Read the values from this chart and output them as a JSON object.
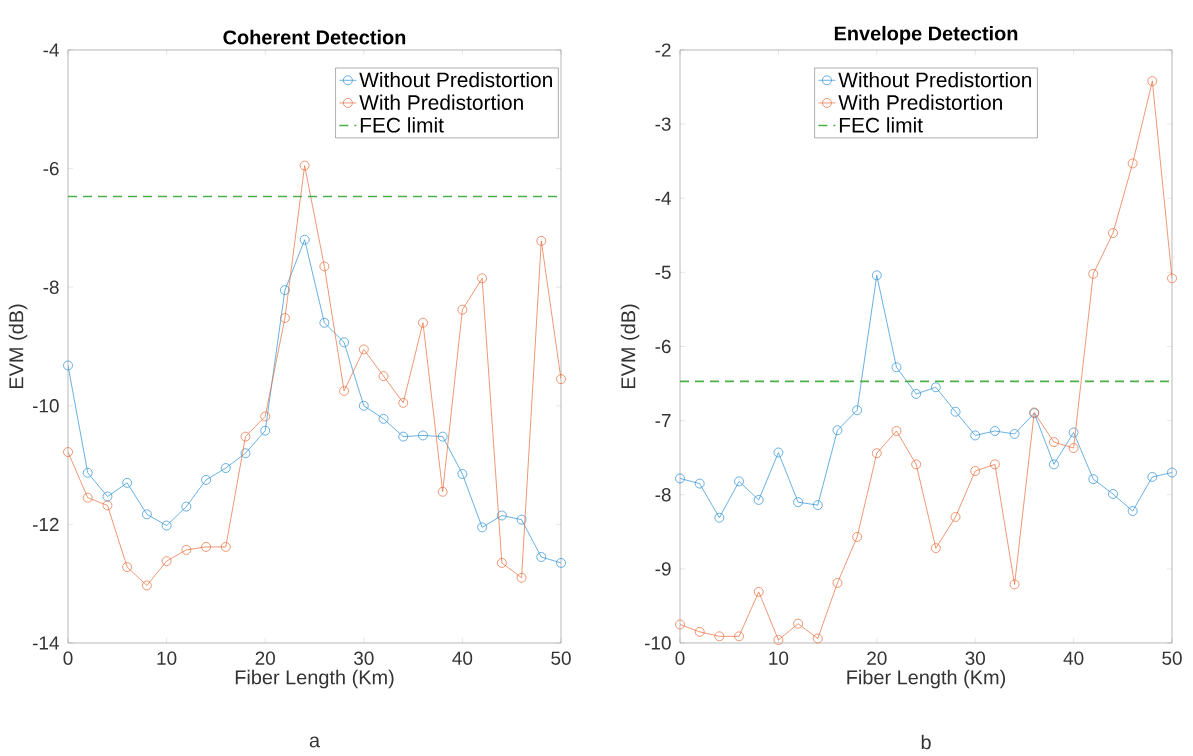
{
  "chart_data": [
    {
      "type": "line",
      "title": "Coherent Detection",
      "xlabel": "Fiber Length (Km)",
      "ylabel": "EVM (dB)",
      "annotations": [
        "a"
      ],
      "marker": "circle",
      "legend": "top right",
      "line_style": "solid",
      "x": [
        0,
        2,
        4,
        6,
        8,
        10,
        12,
        14,
        16,
        18,
        20,
        22,
        24,
        26,
        28,
        30,
        32,
        34,
        36,
        38,
        40,
        42,
        44,
        46,
        48,
        50
      ],
      "series": [
        {
          "name": "Without Predistortion",
          "color": "#2a8fd5",
          "values": [
            -9.32,
            -11.13,
            -11.53,
            -11.3,
            -11.83,
            -12.02,
            -11.7,
            -11.25,
            -11.05,
            -10.8,
            -10.42,
            -8.05,
            -7.2,
            -8.6,
            -8.93,
            -10.0,
            -10.22,
            -10.52,
            -10.5,
            -10.52,
            -11.15,
            -12.05,
            -11.85,
            -11.92,
            -12.55,
            -12.65
          ]
        },
        {
          "name": "With Predistortion",
          "color": "#e66b3a",
          "values": [
            -10.78,
            -11.55,
            -11.68,
            -12.72,
            -13.03,
            -12.62,
            -12.43,
            -12.38,
            -12.38,
            -10.52,
            -10.18,
            -8.52,
            -5.95,
            -7.65,
            -9.75,
            -9.05,
            -9.5,
            -9.95,
            -8.6,
            -11.45,
            -8.38,
            -7.85,
            -12.65,
            -12.9,
            -7.22,
            -9.55
          ]
        }
      ],
      "ref_lines": [
        {
          "axis": "y",
          "value": -6.47,
          "label": "FEC limit",
          "color": "#4daf4a",
          "line_style": "dashed"
        }
      ],
      "xlim": [
        0,
        50
      ],
      "ylim": [
        -14,
        -4
      ],
      "xticks": [
        0,
        10,
        20,
        30,
        40,
        50
      ],
      "yticks": [
        -14,
        -12,
        -10,
        -8,
        -6,
        -4
      ]
    },
    {
      "type": "line",
      "title": "Envelope Detection",
      "xlabel": "Fiber Length (Km)",
      "ylabel": "EVM (dB)",
      "annotations": [
        "b"
      ],
      "marker": "circle",
      "legend": "top",
      "line_style": "solid",
      "x": [
        0,
        2,
        4,
        6,
        8,
        10,
        12,
        14,
        16,
        18,
        20,
        22,
        24,
        26,
        28,
        30,
        32,
        34,
        36,
        38,
        40,
        42,
        44,
        46,
        48,
        50
      ],
      "series": [
        {
          "name": "Without Predistortion",
          "color": "#2a8fd5",
          "values": [
            -7.78,
            -7.85,
            -8.31,
            -7.82,
            -8.07,
            -7.43,
            -8.1,
            -8.14,
            -7.13,
            -6.86,
            -5.04,
            -6.28,
            -6.64,
            -6.55,
            -6.88,
            -7.2,
            -7.14,
            -7.18,
            -6.9,
            -7.59,
            -7.16,
            -7.79,
            -7.99,
            -8.22,
            -7.76,
            -7.7
          ]
        },
        {
          "name": "With Predistortion",
          "color": "#e66b3a",
          "values": [
            -9.75,
            -9.85,
            -9.91,
            -9.91,
            -9.31,
            -9.96,
            -9.74,
            -9.94,
            -9.19,
            -8.57,
            -7.44,
            -7.14,
            -7.59,
            -8.72,
            -8.3,
            -7.68,
            -7.59,
            -9.21,
            -6.89,
            -7.29,
            -7.37,
            -5.02,
            -4.47,
            -3.53,
            -2.42,
            -5.08
          ]
        }
      ],
      "ref_lines": [
        {
          "axis": "y",
          "value": -6.47,
          "label": "FEC limit",
          "color": "#4daf4a",
          "line_style": "dashed"
        }
      ],
      "xlim": [
        0,
        50
      ],
      "ylim": [
        -10,
        -2
      ],
      "xticks": [
        0,
        10,
        20,
        30,
        40,
        50
      ],
      "yticks": [
        -10,
        -9,
        -8,
        -7,
        -6,
        -5,
        -4,
        -3,
        -2
      ]
    }
  ]
}
